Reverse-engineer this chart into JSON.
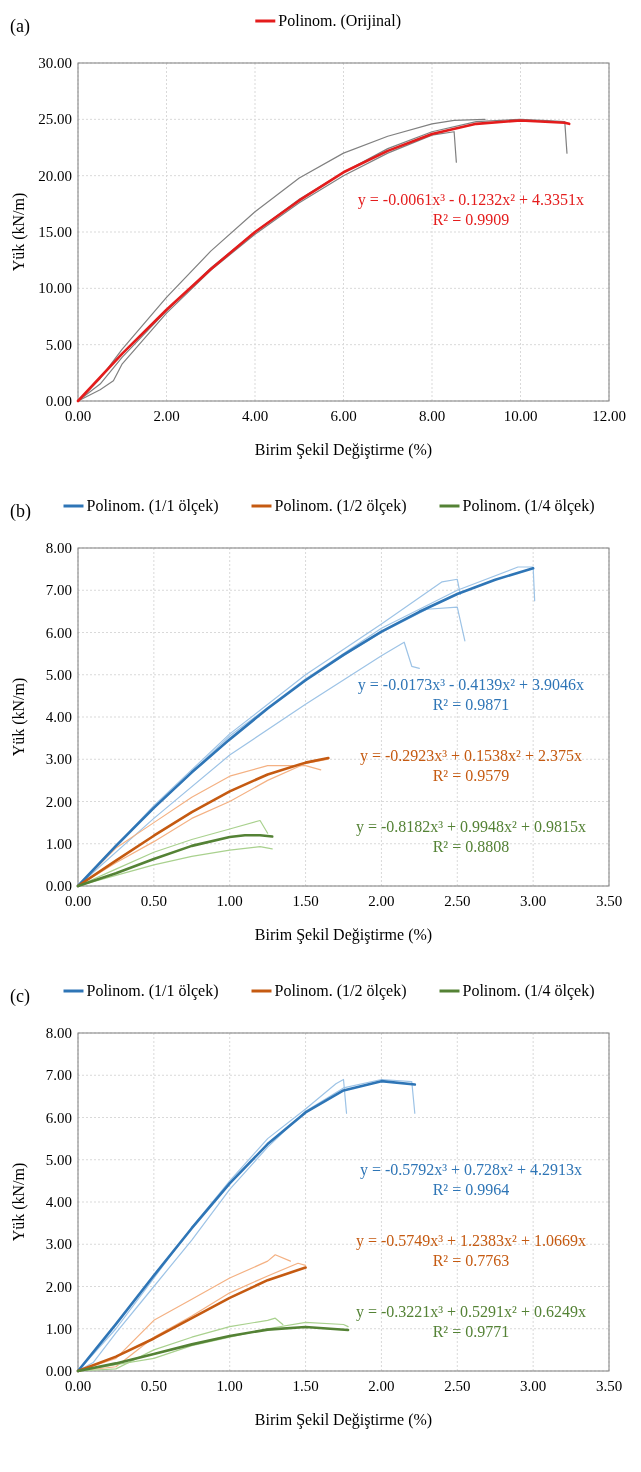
{
  "chart_data": [
    {
      "type": "line",
      "title": "(a)",
      "xlabel": "Birim Şekil Değiştirme (%)",
      "ylabel": "Yük (kN/m)",
      "xlim": [
        0,
        12
      ],
      "ylim": [
        0,
        30
      ],
      "xticks": [
        {
          "value": 0,
          "label": "0.00"
        },
        {
          "value": 2,
          "label": "2.00"
        },
        {
          "value": 4,
          "label": "4.00"
        },
        {
          "value": 6,
          "label": "6.00"
        },
        {
          "value": 8,
          "label": "8.00"
        },
        {
          "value": 10,
          "label": "10.00"
        },
        {
          "value": 12,
          "label": "12.00"
        }
      ],
      "yticks": [
        {
          "value": 0,
          "label": "0.00"
        },
        {
          "value": 5,
          "label": "5.00"
        },
        {
          "value": 10,
          "label": "10.00"
        },
        {
          "value": 15,
          "label": "15.00"
        },
        {
          "value": 20,
          "label": "20.00"
        },
        {
          "value": 25,
          "label": "25.00"
        },
        {
          "value": 30,
          "label": "30.00"
        }
      ],
      "grid": true,
      "legend": "top",
      "marker": "none",
      "line_style": "solid",
      "series": [
        {
          "color": "#808080",
          "x": [
            0,
            0.5,
            1,
            2,
            3,
            4,
            5,
            6,
            7,
            8,
            8.5,
            9.2
          ],
          "values": [
            0,
            2,
            4.6,
            9.2,
            13.3,
            16.8,
            19.8,
            22,
            23.5,
            24.6,
            24.9,
            25
          ]
        },
        {
          "color": "#808080",
          "x": [
            0,
            0.5,
            0.8,
            1,
            2,
            3,
            4,
            5,
            6,
            7,
            8,
            8.5,
            8.55
          ],
          "values": [
            0,
            1,
            1.8,
            3.3,
            7.8,
            11.6,
            14.8,
            17.6,
            20,
            22,
            23.6,
            23.9,
            21.2
          ]
        },
        {
          "color": "#808080",
          "x": [
            0,
            0.5,
            1,
            2,
            3,
            4,
            5,
            6,
            7,
            8,
            9,
            10,
            10.5,
            11,
            11.05
          ],
          "values": [
            0,
            1.5,
            3.9,
            8,
            11.8,
            15,
            17.9,
            20.3,
            22.4,
            23.9,
            24.8,
            25,
            24.9,
            24.8,
            22
          ]
        },
        {
          "name": "Polinom. (Orijinal)",
          "color": "#e41c1c",
          "x": [
            0,
            1,
            2,
            3,
            4,
            5,
            6,
            7,
            8,
            9,
            10,
            11,
            11.1
          ],
          "values": [
            0,
            4.2,
            8.1,
            11.7,
            15,
            17.8,
            20.3,
            22.2,
            23.7,
            24.6,
            24.9,
            24.7,
            24.6
          ]
        }
      ],
      "annotations": [
        "y = -0.0061x³ - 0.1232x² + 4.3351x",
        "R² = 0.9909"
      ]
    },
    {
      "type": "line",
      "title": "(b)",
      "xlabel": "Birim Şekil Değiştirme (%)",
      "ylabel": "Yük (kN/m)",
      "xlim": [
        0,
        3.5
      ],
      "ylim": [
        0,
        8
      ],
      "xticks": [
        {
          "value": 0,
          "label": "0.00"
        },
        {
          "value": 0.5,
          "label": "0.50"
        },
        {
          "value": 1,
          "label": "1.00"
        },
        {
          "value": 1.5,
          "label": "1.50"
        },
        {
          "value": 2,
          "label": "2.00"
        },
        {
          "value": 2.5,
          "label": "2.50"
        },
        {
          "value": 3,
          "label": "3.00"
        },
        {
          "value": 3.5,
          "label": "3.50"
        }
      ],
      "yticks": [
        {
          "value": 0,
          "label": "0.00"
        },
        {
          "value": 1,
          "label": "1.00"
        },
        {
          "value": 2,
          "label": "2.00"
        },
        {
          "value": 3,
          "label": "3.00"
        },
        {
          "value": 4,
          "label": "4.00"
        },
        {
          "value": 5,
          "label": "5.00"
        },
        {
          "value": 6,
          "label": "6.00"
        },
        {
          "value": 7,
          "label": "7.00"
        },
        {
          "value": 8,
          "label": "8.00"
        }
      ],
      "grid": true,
      "legend": "top",
      "marker": "none",
      "line_style": "solid",
      "series": [
        {
          "color": "#9dc3e6",
          "x": [
            0,
            0.5,
            1,
            1.5,
            2,
            2.4,
            2.5,
            2.52
          ],
          "values": [
            0,
            1.9,
            3.6,
            5,
            6.2,
            7.2,
            7.26,
            6.9
          ]
        },
        {
          "color": "#9dc3e6",
          "x": [
            0,
            0.5,
            1,
            1.5,
            2,
            2.3,
            2.5,
            2.55
          ],
          "values": [
            0,
            1.85,
            3.55,
            4.9,
            6,
            6.55,
            6.6,
            5.8
          ]
        },
        {
          "color": "#9dc3e6",
          "x": [
            0,
            0.5,
            1,
            1.5,
            2,
            2.15,
            2.2,
            2.25
          ],
          "values": [
            0,
            1.6,
            3.1,
            4.3,
            5.45,
            5.77,
            5.2,
            5.15
          ]
        },
        {
          "color": "#9dc3e6",
          "x": [
            0,
            0.5,
            1,
            1.5,
            2,
            2.5,
            2.9,
            3,
            3.01
          ],
          "values": [
            0,
            1.85,
            3.5,
            4.9,
            6.1,
            7,
            7.55,
            7.55,
            6.75
          ]
        },
        {
          "color": "#f4b183",
          "x": [
            0,
            0.25,
            0.5,
            0.75,
            1,
            1.25,
            1.5,
            1.6
          ],
          "values": [
            0,
            0.9,
            1.5,
            2.1,
            2.6,
            2.85,
            2.85,
            2.75
          ]
        },
        {
          "color": "#f4b183",
          "x": [
            0,
            0.25,
            0.5,
            0.75,
            1,
            1.25,
            1.5,
            1.65
          ],
          "values": [
            0,
            0.55,
            1.05,
            1.6,
            2,
            2.5,
            2.9,
            3
          ]
        },
        {
          "color": "#a9d18e",
          "x": [
            0,
            0.25,
            0.5,
            0.75,
            1,
            1.2,
            1.25
          ],
          "values": [
            0,
            0.4,
            0.8,
            1.1,
            1.35,
            1.55,
            1.25
          ]
        },
        {
          "color": "#a9d18e",
          "x": [
            0,
            0.25,
            0.5,
            0.75,
            1,
            1.2,
            1.28
          ],
          "values": [
            0,
            0.25,
            0.5,
            0.7,
            0.85,
            0.93,
            0.88
          ]
        },
        {
          "name": "Polinom. (1/1 ölçek)",
          "color": "#2e75b6",
          "x": [
            0,
            0.25,
            0.5,
            0.75,
            1,
            1.25,
            1.5,
            1.75,
            2,
            2.25,
            2.5,
            2.75,
            3
          ],
          "values": [
            0,
            0.95,
            1.85,
            2.69,
            3.47,
            4.2,
            4.87,
            5.47,
            6.02,
            6.49,
            6.91,
            7.25,
            7.52
          ]
        },
        {
          "name": "Polinom. (1/2 ölçek)",
          "color": "#c55a11",
          "x": [
            0,
            0.25,
            0.5,
            0.75,
            1,
            1.25,
            1.5,
            1.65
          ],
          "values": [
            0,
            0.6,
            1.19,
            1.75,
            2.24,
            2.64,
            2.92,
            3.03
          ]
        },
        {
          "name": "Polinom. (1/4 ölçek)",
          "color": "#548235",
          "x": [
            0,
            0.25,
            0.5,
            0.75,
            1,
            1.1,
            1.2,
            1.28
          ],
          "values": [
            0,
            0.3,
            0.64,
            0.95,
            1.16,
            1.2,
            1.2,
            1.17
          ]
        }
      ],
      "annotations": [
        "y = -0.0173x³ - 0.4139x² + 3.9046x",
        "R² = 0.9871",
        "y = -0.2923x³ + 0.1538x² + 2.375x",
        "R² = 0.9579",
        "y = -0.8182x³ + 0.9948x² + 0.9815x",
        "R² = 0.8808"
      ]
    },
    {
      "type": "line",
      "title": "(c)",
      "xlabel": "Birim Şekil Değiştirme (%)",
      "ylabel": "Yük (kN/m)",
      "xlim": [
        0,
        3.5
      ],
      "ylim": [
        0,
        8
      ],
      "xticks": [
        {
          "value": 0,
          "label": "0.00"
        },
        {
          "value": 0.5,
          "label": "0.50"
        },
        {
          "value": 1,
          "label": "1.00"
        },
        {
          "value": 1.5,
          "label": "1.50"
        },
        {
          "value": 2,
          "label": "2.00"
        },
        {
          "value": 2.5,
          "label": "2.50"
        },
        {
          "value": 3,
          "label": "3.00"
        },
        {
          "value": 3.5,
          "label": "3.50"
        }
      ],
      "yticks": [
        {
          "value": 0,
          "label": "0.00"
        },
        {
          "value": 1,
          "label": "1.00"
        },
        {
          "value": 2,
          "label": "2.00"
        },
        {
          "value": 3,
          "label": "3.00"
        },
        {
          "value": 4,
          "label": "4.00"
        },
        {
          "value": 5,
          "label": "5.00"
        },
        {
          "value": 6,
          "label": "6.00"
        },
        {
          "value": 7,
          "label": "7.00"
        },
        {
          "value": 8,
          "label": "8.00"
        }
      ],
      "grid": true,
      "legend": "top",
      "marker": "none",
      "line_style": "solid",
      "series": [
        {
          "color": "#9dc3e6",
          "x": [
            0,
            0.25,
            0.5,
            0.75,
            1,
            1.25,
            1.5,
            1.7,
            1.75,
            1.77
          ],
          "values": [
            0,
            1,
            2.2,
            3.4,
            4.5,
            5.5,
            6.2,
            6.8,
            6.9,
            6.1
          ]
        },
        {
          "color": "#9dc3e6",
          "x": [
            0,
            0.1,
            0.25,
            0.5,
            0.75,
            1,
            1.25,
            1.5,
            1.75,
            2,
            2.2,
            2.22
          ],
          "values": [
            0,
            0.2,
            0.9,
            2,
            3.1,
            4.3,
            5.3,
            6.15,
            6.7,
            6.9,
            6.85,
            6.1
          ]
        },
        {
          "color": "#f4b183",
          "x": [
            0,
            0.25,
            0.5,
            0.75,
            1,
            1.25,
            1.3,
            1.4
          ],
          "values": [
            0,
            0.3,
            1.2,
            1.7,
            2.2,
            2.6,
            2.75,
            2.6
          ]
        },
        {
          "color": "#f4b183",
          "x": [
            0,
            0.25,
            0.5,
            0.75,
            1,
            1.25,
            1.45,
            1.5
          ],
          "values": [
            0,
            0.1,
            0.8,
            1.3,
            1.85,
            2.25,
            2.55,
            2.5
          ]
        },
        {
          "color": "#a9d18e",
          "x": [
            0,
            0.25,
            0.5,
            0.75,
            1,
            1.25,
            1.3,
            1.35
          ],
          "values": [
            0,
            0.05,
            0.5,
            0.8,
            1.05,
            1.2,
            1.25,
            1.1
          ]
        },
        {
          "color": "#a9d18e",
          "x": [
            0,
            0.5,
            0.75,
            1,
            1.25,
            1.5,
            1.75,
            1.78
          ],
          "values": [
            0,
            0.3,
            0.6,
            0.8,
            1,
            1.15,
            1.1,
            1.05
          ]
        },
        {
          "name": "Polinom. (1/1 ölçek)",
          "color": "#2e75b6",
          "x": [
            0,
            0.25,
            0.5,
            0.75,
            1,
            1.25,
            1.5,
            1.75,
            2,
            2.22
          ],
          "values": [
            0,
            1.11,
            2.26,
            3.38,
            4.44,
            5.37,
            6.12,
            6.64,
            6.86,
            6.78
          ]
        },
        {
          "name": "Polinom. (1/2 ölçek)",
          "color": "#c55a11",
          "x": [
            0,
            0.25,
            0.5,
            0.75,
            1,
            1.25,
            1.5
          ],
          "values": [
            0,
            0.34,
            0.77,
            1.25,
            1.73,
            2.15,
            2.45
          ]
        },
        {
          "name": "Polinom. (1/4 ölçek)",
          "color": "#548235",
          "x": [
            0,
            0.25,
            0.5,
            0.75,
            1,
            1.25,
            1.5,
            1.78
          ],
          "values": [
            0,
            0.18,
            0.4,
            0.63,
            0.83,
            0.98,
            1.04,
            0.97
          ]
        }
      ],
      "annotations": [
        "y = -0.5792x³ + 0.728x² + 4.2913x",
        "R² = 0.9964",
        "y = -0.5749x³ + 1.2383x² + 1.0669x",
        "R² = 0.7763",
        "y = -0.3221x³ + 0.5291x² + 0.6249x",
        "R² = 0.9771"
      ]
    }
  ]
}
